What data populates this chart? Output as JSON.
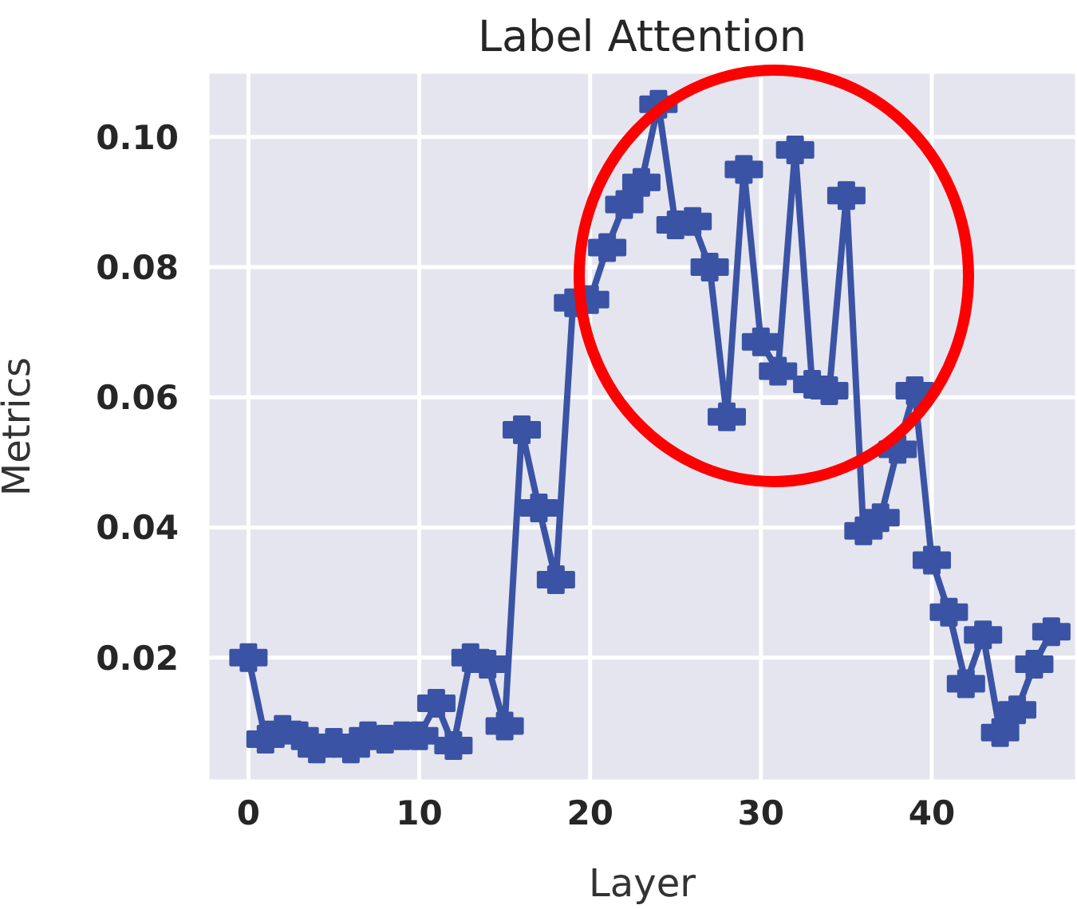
{
  "chart_data": {
    "type": "line",
    "title": "Label Attention",
    "xlabel": "Layer",
    "ylabel": "Metrics",
    "x": [
      0,
      1,
      2,
      3,
      4,
      5,
      6,
      7,
      8,
      9,
      10,
      11,
      12,
      13,
      14,
      15,
      16,
      17,
      18,
      19,
      20,
      21,
      22,
      23,
      24,
      25,
      26,
      27,
      28,
      29,
      30,
      31,
      32,
      33,
      34,
      35,
      36,
      37,
      38,
      39,
      40,
      41,
      42,
      43,
      44,
      45,
      46,
      47
    ],
    "series": [
      {
        "color": "#3a53a4",
        "values": [
          0.02,
          0.0075,
          0.009,
          0.008,
          0.006,
          0.007,
          0.006,
          0.008,
          0.0075,
          0.008,
          0.008,
          0.013,
          0.0065,
          0.02,
          0.019,
          0.0095,
          0.055,
          0.043,
          0.032,
          0.0745,
          0.075,
          0.083,
          0.0896,
          0.093,
          0.105,
          0.0865,
          0.087,
          0.08,
          0.057,
          0.095,
          0.0685,
          0.064,
          0.098,
          0.062,
          0.061,
          0.091,
          0.0395,
          0.0415,
          0.052,
          0.061,
          0.035,
          0.027,
          0.016,
          0.0235,
          0.0085,
          0.012,
          0.019,
          0.024
        ]
      }
    ],
    "xlim": [
      -2.4,
      48.5
    ],
    "xticks": [
      0,
      10,
      20,
      30,
      40
    ],
    "ylim": [
      0.001,
      0.11
    ],
    "yticks": [
      0.02,
      0.04,
      0.06,
      0.08,
      {
        "value": 0.1,
        "label": "0.10"
      }
    ],
    "grid": true,
    "marker": "cross",
    "line_style": "solid",
    "legend": false
  }
}
